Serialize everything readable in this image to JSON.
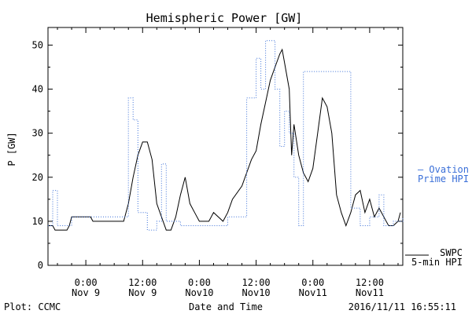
{
  "chart_data": {
    "type": "line",
    "title": "Hemispheric Power [GW]",
    "xlabel": "Date and Time",
    "ylabel": "P [GW]",
    "ylim": [
      0,
      54
    ],
    "xlim": [
      "2016-11-08T16:00",
      "2016-11-11T19:00"
    ],
    "grid": false,
    "yticks": [
      0,
      10,
      20,
      30,
      40,
      50
    ],
    "x_tick_labels": [
      {
        "at": "2016-11-09T00:00",
        "line1": "0:00",
        "line2": "Nov 9"
      },
      {
        "at": "2016-11-09T12:00",
        "line1": "12:00",
        "line2": "Nov 9"
      },
      {
        "at": "2016-11-10T00:00",
        "line1": "0:00",
        "line2": "Nov10"
      },
      {
        "at": "2016-11-10T12:00",
        "line1": "12:00",
        "line2": "Nov10"
      },
      {
        "at": "2016-11-11T00:00",
        "line1": "0:00",
        "line2": "Nov11"
      },
      {
        "at": "2016-11-11T12:00",
        "line1": "12:00",
        "line2": "Nov11"
      }
    ],
    "series": [
      {
        "name": "SWPC 5-min HPI",
        "legend_line1": "SWPC",
        "legend_line2": "5-min HPI",
        "color": "#000000",
        "style": "solid",
        "points": [
          [
            "2016-11-08T16:00",
            9
          ],
          [
            "2016-11-08T17:00",
            9
          ],
          [
            "2016-11-08T17:30",
            8
          ],
          [
            "2016-11-08T20:00",
            8
          ],
          [
            "2016-11-08T20:30",
            9
          ],
          [
            "2016-11-08T21:00",
            11
          ],
          [
            "2016-11-09T01:00",
            11
          ],
          [
            "2016-11-09T01:30",
            10
          ],
          [
            "2016-11-09T08:00",
            10
          ],
          [
            "2016-11-09T09:00",
            14
          ],
          [
            "2016-11-09T10:00",
            20
          ],
          [
            "2016-11-09T11:00",
            25
          ],
          [
            "2016-11-09T12:00",
            28
          ],
          [
            "2016-11-09T13:00",
            28
          ],
          [
            "2016-11-09T14:00",
            24
          ],
          [
            "2016-11-09T15:00",
            14
          ],
          [
            "2016-11-09T16:00",
            11
          ],
          [
            "2016-11-09T17:00",
            8
          ],
          [
            "2016-11-09T18:00",
            8
          ],
          [
            "2016-11-09T19:00",
            11
          ],
          [
            "2016-11-09T20:00",
            16
          ],
          [
            "2016-11-09T21:00",
            20
          ],
          [
            "2016-11-09T22:00",
            14
          ],
          [
            "2016-11-09T23:00",
            12
          ],
          [
            "2016-11-10T00:00",
            10
          ],
          [
            "2016-11-10T02:00",
            10
          ],
          [
            "2016-11-10T03:00",
            12
          ],
          [
            "2016-11-10T05:00",
            10
          ],
          [
            "2016-11-10T06:00",
            12
          ],
          [
            "2016-11-10T07:00",
            15
          ],
          [
            "2016-11-10T09:00",
            18
          ],
          [
            "2016-11-10T11:00",
            24
          ],
          [
            "2016-11-10T12:00",
            26
          ],
          [
            "2016-11-10T13:00",
            32
          ],
          [
            "2016-11-10T14:00",
            37
          ],
          [
            "2016-11-10T15:00",
            42
          ],
          [
            "2016-11-10T16:00",
            45
          ],
          [
            "2016-11-10T17:00",
            48
          ],
          [
            "2016-11-10T17:30",
            49
          ],
          [
            "2016-11-10T18:00",
            46
          ],
          [
            "2016-11-10T19:00",
            40
          ],
          [
            "2016-11-10T19:30",
            25
          ],
          [
            "2016-11-10T20:00",
            32
          ],
          [
            "2016-11-10T21:00",
            25
          ],
          [
            "2016-11-10T22:00",
            21
          ],
          [
            "2016-11-10T23:00",
            19
          ],
          [
            "2016-11-11T00:00",
            22
          ],
          [
            "2016-11-11T01:00",
            30
          ],
          [
            "2016-11-11T02:00",
            38
          ],
          [
            "2016-11-11T03:00",
            36
          ],
          [
            "2016-11-11T04:00",
            30
          ],
          [
            "2016-11-11T05:00",
            16
          ],
          [
            "2016-11-11T06:00",
            12
          ],
          [
            "2016-11-11T07:00",
            9
          ],
          [
            "2016-11-11T08:00",
            12
          ],
          [
            "2016-11-11T09:00",
            16
          ],
          [
            "2016-11-11T10:00",
            17
          ],
          [
            "2016-11-11T11:00",
            12
          ],
          [
            "2016-11-11T12:00",
            15
          ],
          [
            "2016-11-11T13:00",
            11
          ],
          [
            "2016-11-11T14:00",
            13
          ],
          [
            "2016-11-11T15:00",
            11
          ],
          [
            "2016-11-11T16:00",
            9
          ],
          [
            "2016-11-11T17:00",
            9
          ],
          [
            "2016-11-11T18:00",
            10
          ],
          [
            "2016-11-11T18:30",
            12
          ]
        ]
      },
      {
        "name": "Ovation Prime HPI",
        "legend_line1": "— Ovation",
        "legend_line2": "Prime HPI",
        "color": "#3a6fd8",
        "style": "dotted-step",
        "points": [
          [
            "2016-11-08T16:00",
            9
          ],
          [
            "2016-11-08T17:00",
            17
          ],
          [
            "2016-11-08T18:00",
            9
          ],
          [
            "2016-11-08T20:00",
            9
          ],
          [
            "2016-11-08T21:00",
            11
          ],
          [
            "2016-11-09T03:00",
            11
          ],
          [
            "2016-11-09T09:00",
            38
          ],
          [
            "2016-11-09T10:00",
            33
          ],
          [
            "2016-11-09T11:00",
            12
          ],
          [
            "2016-11-09T13:00",
            8
          ],
          [
            "2016-11-09T15:00",
            10
          ],
          [
            "2016-11-09T16:00",
            23
          ],
          [
            "2016-11-09T17:00",
            10
          ],
          [
            "2016-11-09T20:00",
            9
          ],
          [
            "2016-11-10T04:00",
            9
          ],
          [
            "2016-11-10T06:00",
            11
          ],
          [
            "2016-11-10T10:00",
            38
          ],
          [
            "2016-11-10T12:00",
            47
          ],
          [
            "2016-11-10T13:00",
            40
          ],
          [
            "2016-11-10T14:00",
            51
          ],
          [
            "2016-11-10T16:00",
            40
          ],
          [
            "2016-11-10T17:00",
            27
          ],
          [
            "2016-11-10T18:00",
            35
          ],
          [
            "2016-11-10T19:00",
            30
          ],
          [
            "2016-11-10T20:00",
            20
          ],
          [
            "2016-11-10T21:00",
            9
          ],
          [
            "2016-11-10T22:00",
            44
          ],
          [
            "2016-11-11T03:00",
            44
          ],
          [
            "2016-11-11T08:00",
            13
          ],
          [
            "2016-11-11T10:00",
            9
          ],
          [
            "2016-11-11T12:00",
            11
          ],
          [
            "2016-11-11T14:00",
            16
          ],
          [
            "2016-11-11T15:00",
            9
          ],
          [
            "2016-11-11T17:00",
            10
          ],
          [
            "2016-11-11T19:00",
            11
          ]
        ]
      }
    ]
  },
  "footer": {
    "left": "Plot: CCMC",
    "center": "Date and Time",
    "timestamp": "2016/11/11  16:55:11"
  }
}
